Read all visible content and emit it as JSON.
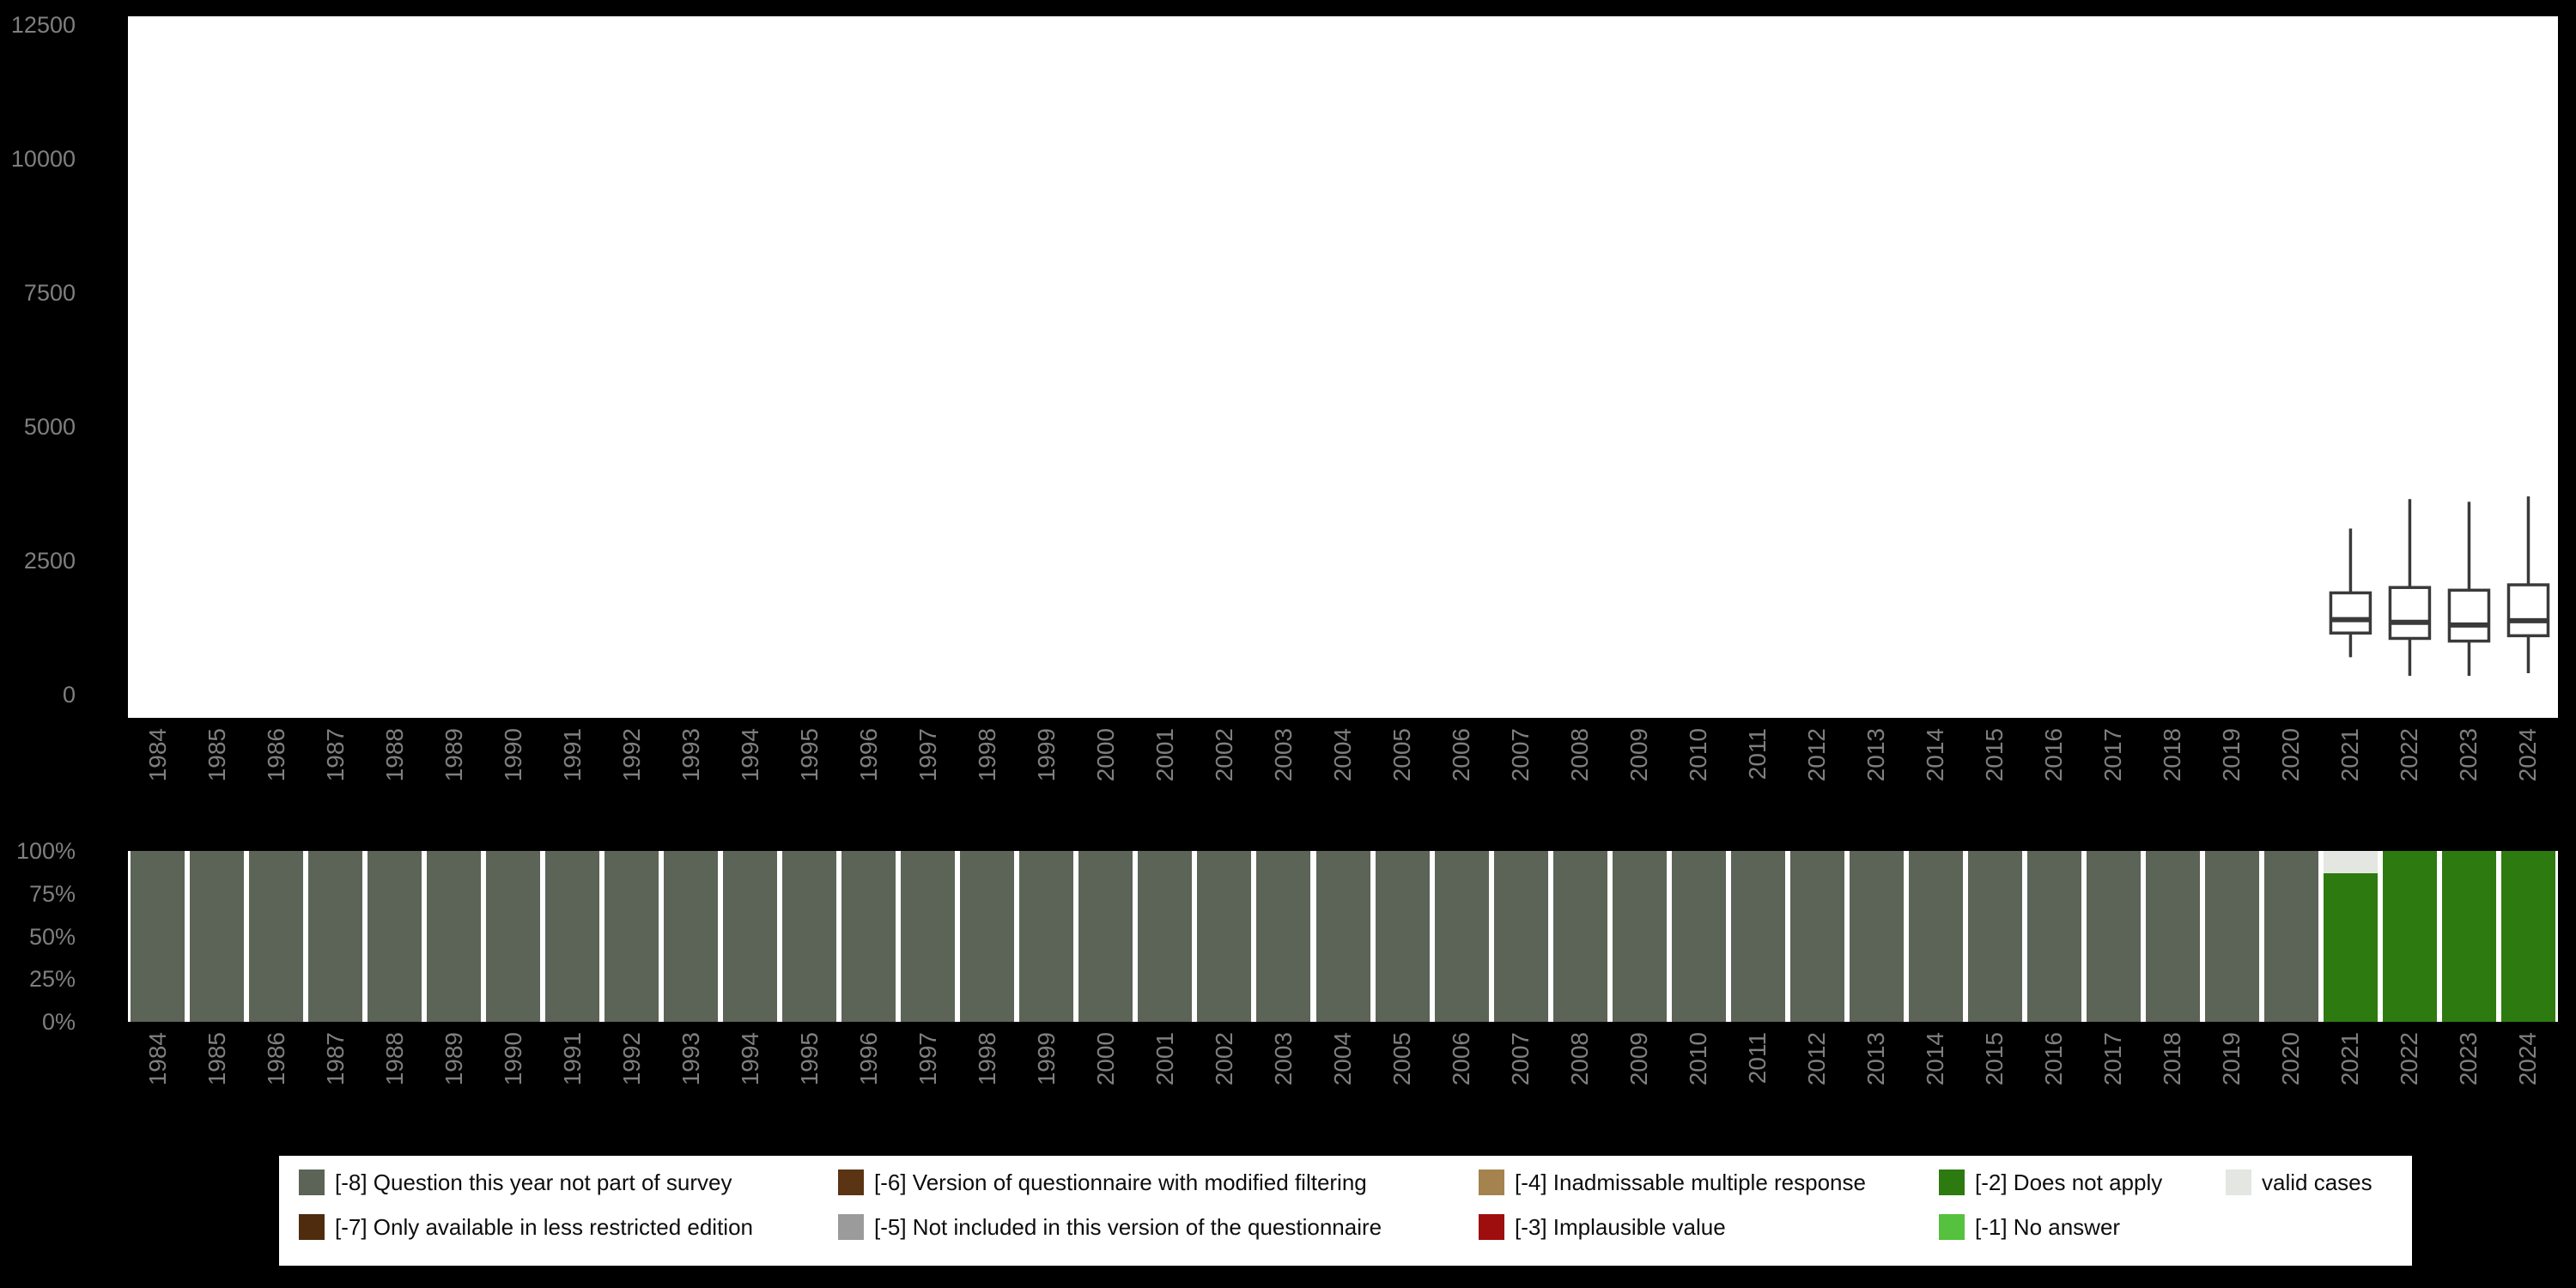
{
  "colors": {
    "background": "#000000",
    "panel": "#ffffff",
    "axis_text": "#7f7f7f",
    "boxplot_stroke": "#3a3a3a",
    "legend_bg": "#ffffff"
  },
  "legend": {
    "columns": [
      [
        {
          "id": "m8",
          "label": "[-8] Question this year not part of survey"
        },
        {
          "id": "m7",
          "label": "[-7] Only available in less restricted edition"
        }
      ],
      [
        {
          "id": "m6",
          "label": "[-6] Version of questionnaire with modified filtering"
        },
        {
          "id": "m5",
          "label": "[-5] Not included in this version of the questionnaire"
        }
      ],
      [
        {
          "id": "m4",
          "label": "[-4] Inadmissable multiple response"
        },
        {
          "id": "m3",
          "label": "[-3] Implausible value"
        }
      ],
      [
        {
          "id": "m2",
          "label": "[-2] Does not apply"
        },
        {
          "id": "m1",
          "label": "[-1] No answer"
        }
      ],
      [
        {
          "id": "valid",
          "label": "valid cases"
        }
      ]
    ],
    "swatch_colors": {
      "m8": "#5b6457",
      "m7": "#4f2c0e",
      "m6": "#5a3413",
      "m5": "#9b9b9b",
      "m4": "#a5834e",
      "m3": "#9e0e0e",
      "m2": "#2d7a10",
      "m1": "#55c13e",
      "valid": "#e4e6e1"
    }
  },
  "chart_data": [
    {
      "type": "boxplot",
      "title": "",
      "xlabel": "",
      "ylabel": "",
      "ylim": [
        0,
        12500
      ],
      "yticks": [
        0,
        2500,
        5000,
        7500,
        10000,
        12500
      ],
      "categories": [
        "1984",
        "1985",
        "1986",
        "1987",
        "1988",
        "1989",
        "1990",
        "1991",
        "1992",
        "1993",
        "1994",
        "1995",
        "1996",
        "1997",
        "1998",
        "1999",
        "2000",
        "2001",
        "2002",
        "2003",
        "2004",
        "2005",
        "2006",
        "2007",
        "2008",
        "2009",
        "2010",
        "2011",
        "2012",
        "2013",
        "2014",
        "2015",
        "2016",
        "2017",
        "2018",
        "2019",
        "2020",
        "2021",
        "2022",
        "2023",
        "2024"
      ],
      "grid": false,
      "legend_position": "none",
      "series": [
        {
          "year": "2021",
          "min": 700,
          "q1": 1150,
          "median": 1400,
          "q3": 1900,
          "max": 3100
        },
        {
          "year": "2022",
          "min": 350,
          "q1": 1050,
          "median": 1350,
          "q3": 2000,
          "max": 3650
        },
        {
          "year": "2023",
          "min": 350,
          "q1": 1000,
          "median": 1300,
          "q3": 1950,
          "max": 3600
        },
        {
          "year": "2024",
          "min": 400,
          "q1": 1100,
          "median": 1380,
          "q3": 2050,
          "max": 3700
        }
      ]
    },
    {
      "type": "bar",
      "subtype": "stacked-percent",
      "title": "",
      "xlabel": "",
      "ylabel": "",
      "ylim_percent": [
        0,
        100
      ],
      "yticks_percent": [
        "100%",
        "75%",
        "50%",
        "25%",
        "0%"
      ],
      "grid": false,
      "legend_position": "bottom",
      "categories": [
        "1984",
        "1985",
        "1986",
        "1987",
        "1988",
        "1989",
        "1990",
        "1991",
        "1992",
        "1993",
        "1994",
        "1995",
        "1996",
        "1997",
        "1998",
        "1999",
        "2000",
        "2001",
        "2002",
        "2003",
        "2004",
        "2005",
        "2006",
        "2007",
        "2008",
        "2009",
        "2010",
        "2011",
        "2012",
        "2013",
        "2014",
        "2015",
        "2016",
        "2017",
        "2018",
        "2019",
        "2020",
        "2021",
        "2022",
        "2023",
        "2024"
      ],
      "bars": [
        {
          "year": "1984",
          "segments": [
            [
              "m8",
              100
            ]
          ]
        },
        {
          "year": "1985",
          "segments": [
            [
              "m8",
              100
            ]
          ]
        },
        {
          "year": "1986",
          "segments": [
            [
              "m8",
              100
            ]
          ]
        },
        {
          "year": "1987",
          "segments": [
            [
              "m8",
              100
            ]
          ]
        },
        {
          "year": "1988",
          "segments": [
            [
              "m8",
              100
            ]
          ]
        },
        {
          "year": "1989",
          "segments": [
            [
              "m8",
              100
            ]
          ]
        },
        {
          "year": "1990",
          "segments": [
            [
              "m8",
              100
            ]
          ]
        },
        {
          "year": "1991",
          "segments": [
            [
              "m8",
              100
            ]
          ]
        },
        {
          "year": "1992",
          "segments": [
            [
              "m8",
              100
            ]
          ]
        },
        {
          "year": "1993",
          "segments": [
            [
              "m8",
              100
            ]
          ]
        },
        {
          "year": "1994",
          "segments": [
            [
              "m8",
              100
            ]
          ]
        },
        {
          "year": "1995",
          "segments": [
            [
              "m8",
              100
            ]
          ]
        },
        {
          "year": "1996",
          "segments": [
            [
              "m8",
              100
            ]
          ]
        },
        {
          "year": "1997",
          "segments": [
            [
              "m8",
              100
            ]
          ]
        },
        {
          "year": "1998",
          "segments": [
            [
              "m8",
              100
            ]
          ]
        },
        {
          "year": "1999",
          "segments": [
            [
              "m8",
              100
            ]
          ]
        },
        {
          "year": "2000",
          "segments": [
            [
              "m8",
              100
            ]
          ]
        },
        {
          "year": "2001",
          "segments": [
            [
              "m8",
              100
            ]
          ]
        },
        {
          "year": "2002",
          "segments": [
            [
              "m8",
              100
            ]
          ]
        },
        {
          "year": "2003",
          "segments": [
            [
              "m8",
              100
            ]
          ]
        },
        {
          "year": "2004",
          "segments": [
            [
              "m8",
              100
            ]
          ]
        },
        {
          "year": "2005",
          "segments": [
            [
              "m8",
              100
            ]
          ]
        },
        {
          "year": "2006",
          "segments": [
            [
              "m8",
              100
            ]
          ]
        },
        {
          "year": "2007",
          "segments": [
            [
              "m8",
              100
            ]
          ]
        },
        {
          "year": "2008",
          "segments": [
            [
              "m8",
              100
            ]
          ]
        },
        {
          "year": "2009",
          "segments": [
            [
              "m8",
              100
            ]
          ]
        },
        {
          "year": "2010",
          "segments": [
            [
              "m8",
              100
            ]
          ]
        },
        {
          "year": "2011",
          "segments": [
            [
              "m8",
              100
            ]
          ]
        },
        {
          "year": "2012",
          "segments": [
            [
              "m8",
              100
            ]
          ]
        },
        {
          "year": "2013",
          "segments": [
            [
              "m8",
              100
            ]
          ]
        },
        {
          "year": "2014",
          "segments": [
            [
              "m8",
              100
            ]
          ]
        },
        {
          "year": "2015",
          "segments": [
            [
              "m8",
              100
            ]
          ]
        },
        {
          "year": "2016",
          "segments": [
            [
              "m8",
              100
            ]
          ]
        },
        {
          "year": "2017",
          "segments": [
            [
              "m8",
              100
            ]
          ]
        },
        {
          "year": "2018",
          "segments": [
            [
              "m8",
              100
            ]
          ]
        },
        {
          "year": "2019",
          "segments": [
            [
              "m8",
              100
            ]
          ]
        },
        {
          "year": "2020",
          "segments": [
            [
              "m8",
              100
            ]
          ]
        },
        {
          "year": "2021",
          "segments": [
            [
              "m2",
              87
            ],
            [
              "valid",
              13
            ]
          ]
        },
        {
          "year": "2022",
          "segments": [
            [
              "m2",
              100
            ]
          ]
        },
        {
          "year": "2023",
          "segments": [
            [
              "m2",
              100
            ]
          ]
        },
        {
          "year": "2024",
          "segments": [
            [
              "m2",
              100
            ]
          ]
        }
      ]
    }
  ]
}
